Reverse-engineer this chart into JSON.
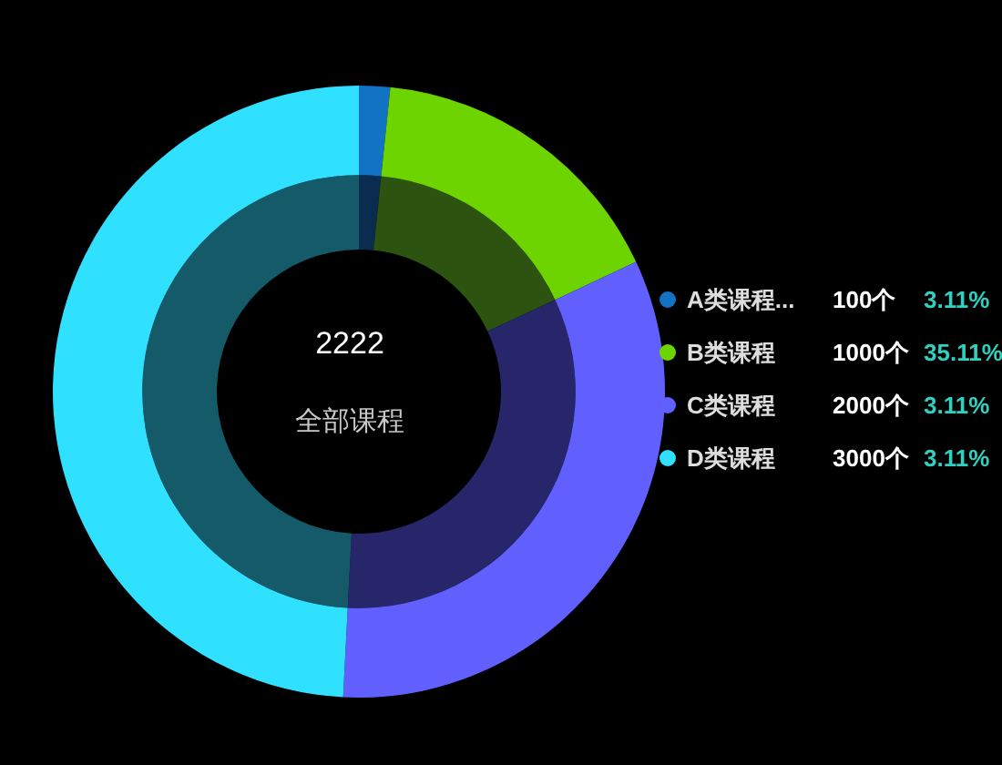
{
  "chart_data": {
    "type": "donut",
    "title": "2222",
    "subtitle": "全部课程",
    "categories": [
      "A类课程...",
      "B类课程",
      "C类课程",
      "D类课程"
    ],
    "series": [
      {
        "values": [
          1.64,
          16.39,
          32.79,
          49.18
        ],
        "colors": [
          "#0a2d4f",
          "#2c5410",
          "#27266a",
          "#155a68"
        ]
      },
      {
        "values": [
          100,
          1000,
          2000,
          3000
        ],
        "colors": [
          "#1272c4",
          "#6dd400",
          "#6160ff",
          "#2fe0ff"
        ],
        "value_labels": [
          "100个",
          "1000个",
          "2000个",
          "3000个"
        ]
      }
    ],
    "annotations": [
      "3.11%",
      "35.11%",
      "3.11%",
      "3.11%"
    ],
    "legend": "right"
  }
}
